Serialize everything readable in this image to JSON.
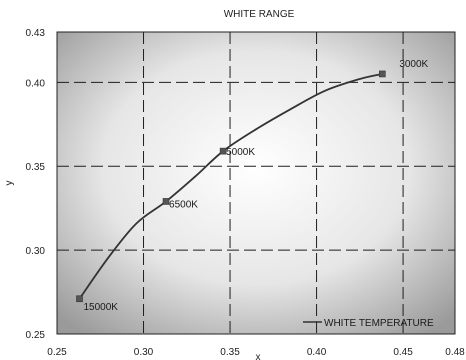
{
  "chart_data": {
    "type": "line",
    "title": "WHITE RANGE",
    "xlabel": "x",
    "ylabel": "y",
    "xlim": [
      0.25,
      0.48
    ],
    "ylim": [
      0.25,
      0.43
    ],
    "x_ticks": [
      0.25,
      0.3,
      0.35,
      0.4,
      0.45,
      0.48
    ],
    "x_tick_labels": [
      "0.25",
      "0.30",
      "0.35",
      "0.40",
      "0.45",
      "0.48"
    ],
    "y_ticks": [
      0.25,
      0.3,
      0.35,
      0.4,
      0.43
    ],
    "y_tick_labels": [
      "0.25",
      "0.30",
      "0.35",
      "0.40",
      "0.43"
    ],
    "grid": true,
    "legend_position": "bottom-right",
    "series": [
      {
        "name": "WHITE TEMPERATURE",
        "color": "#333333",
        "x": [
          0.263,
          0.28,
          0.296,
          0.313,
          0.33,
          0.346,
          0.365,
          0.385,
          0.405,
          0.425,
          0.438
        ],
        "y": [
          0.271,
          0.296,
          0.316,
          0.329,
          0.344,
          0.359,
          0.372,
          0.384,
          0.395,
          0.402,
          0.405
        ]
      }
    ],
    "points": [
      {
        "label": "15000K",
        "x": 0.263,
        "y": 0.271
      },
      {
        "label": "6500K",
        "x": 0.313,
        "y": 0.329
      },
      {
        "label": "5000K",
        "x": 0.346,
        "y": 0.359
      },
      {
        "label": "3000K",
        "x": 0.438,
        "y": 0.405
      }
    ]
  }
}
